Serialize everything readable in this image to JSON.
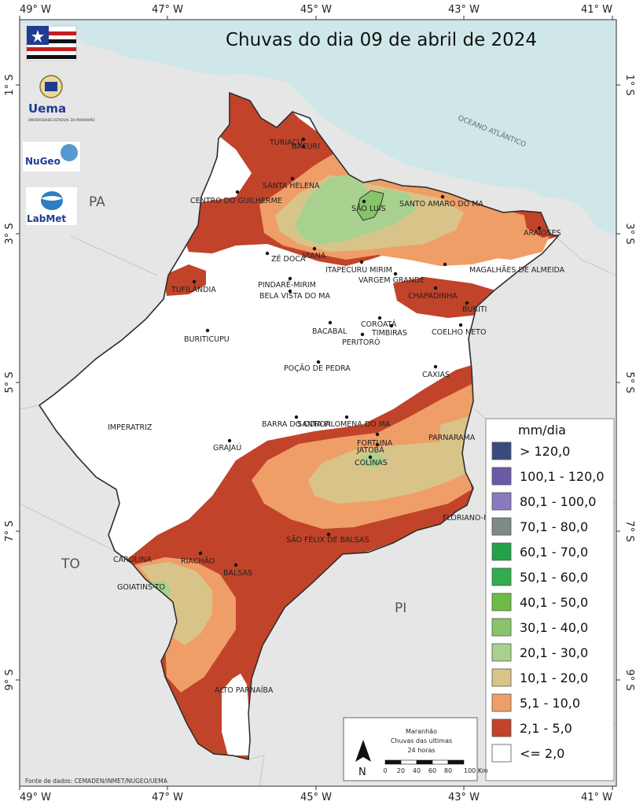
{
  "title": "Chuvas do dia 09 de abril de 2024",
  "colors": {
    "ocean": "#cfe7e8",
    "land_outside": "#e6e6e6",
    "state_base": "#ffffff",
    "c_2_5": "#c1432a",
    "c_5_10": "#ef9e67",
    "c_10_20": "#d8c489",
    "c_20_30": "#a8d18f",
    "c_30_40": "#88c46a"
  },
  "top_coords": [
    "49° W",
    "47° W",
    "45° W",
    "43° W",
    "41° W"
  ],
  "bottom_coords": [
    "49° W",
    "47° W",
    "45° W",
    "43° W",
    "41° W"
  ],
  "left_coords": [
    "1° S",
    "3° S",
    "5° S",
    "7° S",
    "9° S"
  ],
  "right_coords": [
    "1° S",
    "3° S",
    "5° S",
    "7° S",
    "9° S"
  ],
  "regions": {
    "pa": "PA",
    "to": "TO",
    "pi": "PI"
  },
  "ocean_label": "OCEANO ATLÂNTICO",
  "logos": {
    "uema": "Uema",
    "uema_sub": "UNIVERSIDADE ESTADUAL DO MARANHÃO",
    "nugeo": "NuGeo",
    "labmet": "LabMet"
  },
  "cities": [
    {
      "name": "TURIAÇU"
    },
    {
      "name": "BACURI"
    },
    {
      "name": "SANTA HELENA"
    },
    {
      "name": "CENTRO DO GUILHERME"
    },
    {
      "name": "SÃO LUÍS"
    },
    {
      "name": "SANTO AMARO DO MA"
    },
    {
      "name": "ARAIOSES"
    },
    {
      "name": "ZÉ DOCA"
    },
    {
      "name": "VIANA"
    },
    {
      "name": "ITAPECURU MIRIM"
    },
    {
      "name": "VARGEM GRANDE"
    },
    {
      "name": "MAGALHÃES DE ALMEIDA"
    },
    {
      "name": "PINDARÉ-MIRIM"
    },
    {
      "name": "BELA VISTA DO MA"
    },
    {
      "name": "CHAPADINHA"
    },
    {
      "name": "TUFILÂNDIA"
    },
    {
      "name": "BURITI"
    },
    {
      "name": "BACABAL"
    },
    {
      "name": "COROATÁ"
    },
    {
      "name": "TIMBIRAS"
    },
    {
      "name": "BURITICUPU"
    },
    {
      "name": "PERITORÓ"
    },
    {
      "name": "COELHO NETO"
    },
    {
      "name": "POÇÃO DE PEDRA"
    },
    {
      "name": "CAXIAS"
    },
    {
      "name": "BARRA DO CORDA"
    },
    {
      "name": "SANTA FILOMENA DO MA"
    },
    {
      "name": "IMPERATRIZ"
    },
    {
      "name": "FORTUNA"
    },
    {
      "name": "JATOBÁ"
    },
    {
      "name": "PARNARAMA"
    },
    {
      "name": "GRAJAÚ"
    },
    {
      "name": "COLINAS"
    },
    {
      "name": "FLORIANO-PI"
    },
    {
      "name": "SÃO FÉLIX DE BALSAS"
    },
    {
      "name": "CAROLINA"
    },
    {
      "name": "RIACHÃO"
    },
    {
      "name": "BALSAS"
    },
    {
      "name": "GOIATINS-TO"
    },
    {
      "name": "ALTO PARNAÍBA"
    }
  ],
  "legend": {
    "title": "mm/dia",
    "items": [
      {
        "label": "> 120,0",
        "color": "#3b4a7e"
      },
      {
        "label": "100,1 - 120,0",
        "color": "#6a5aa6"
      },
      {
        "label": "80,1 - 100,0",
        "color": "#8b79c0"
      },
      {
        "label": "70,1 - 80,0",
        "color": "#7d8a87"
      },
      {
        "label": "60,1 - 70,0",
        "color": "#23a24a"
      },
      {
        "label": "50,1 - 60,0",
        "color": "#31ad4d"
      },
      {
        "label": "40,1 - 50,0",
        "color": "#6dbd45"
      },
      {
        "label": "30,1 - 40,0",
        "color": "#88c46a"
      },
      {
        "label": "20,1 - 30,0",
        "color": "#a8d18f"
      },
      {
        "label": "10,1 - 20,0",
        "color": "#d8c489"
      },
      {
        "label": "5,1 - 10,0",
        "color": "#ef9e67"
      },
      {
        "label": "2,1 - 5,0",
        "color": "#c1432a"
      },
      {
        "label": "<= 2,0",
        "color": "#ffffff"
      }
    ]
  },
  "inset": {
    "line1": "Maranhão",
    "line2": "Chuvas das ultimas",
    "line3": "24 horas",
    "north": "N",
    "scale_ticks": [
      "0",
      "20",
      "40",
      "60",
      "80",
      "100 Km"
    ]
  },
  "source": "Fonte de dados: CEMADEN/INMET/NUGEO/UEMA"
}
